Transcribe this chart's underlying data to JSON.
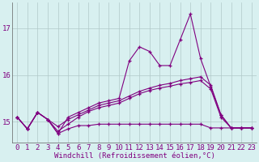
{
  "x": [
    0,
    1,
    2,
    3,
    4,
    5,
    6,
    7,
    8,
    9,
    10,
    11,
    12,
    13,
    14,
    15,
    16,
    17,
    18,
    19,
    20,
    21,
    22,
    23
  ],
  "line1": [
    15.1,
    14.85,
    15.2,
    15.05,
    14.75,
    15.1,
    15.2,
    15.3,
    15.4,
    15.45,
    15.5,
    16.3,
    16.6,
    16.5,
    16.2,
    16.2,
    16.75,
    17.3,
    16.35,
    15.75,
    15.15,
    14.87,
    14.87,
    14.87
  ],
  "line2": [
    15.1,
    14.85,
    15.2,
    15.05,
    14.9,
    15.05,
    15.15,
    15.25,
    15.35,
    15.4,
    15.45,
    15.55,
    15.65,
    15.72,
    15.78,
    15.82,
    15.88,
    15.92,
    15.96,
    15.78,
    15.15,
    14.87,
    14.87,
    14.87
  ],
  "line3": [
    15.1,
    14.85,
    15.2,
    15.05,
    14.8,
    14.95,
    15.1,
    15.22,
    15.3,
    15.35,
    15.4,
    15.5,
    15.6,
    15.67,
    15.72,
    15.76,
    15.81,
    15.84,
    15.88,
    15.7,
    15.1,
    14.87,
    14.87,
    14.87
  ],
  "line4": [
    15.1,
    14.85,
    15.2,
    15.05,
    14.75,
    14.85,
    14.92,
    14.92,
    14.95,
    14.95,
    14.95,
    14.95,
    14.95,
    14.95,
    14.95,
    14.95,
    14.95,
    14.95,
    14.95,
    14.87,
    14.87,
    14.87,
    14.87,
    14.87
  ],
  "line_color": "#800080",
  "bg_color": "#d8f0f0",
  "grid_color": "#b0c8c8",
  "ylabel_values": [
    15,
    16,
    17
  ],
  "ylim": [
    14.55,
    17.55
  ],
  "xlim": [
    -0.5,
    23.5
  ],
  "xlabel": "Windchill (Refroidissement éolien,°C)",
  "xlabel_fontsize": 6.5,
  "tick_fontsize": 6.5,
  "marker": "+",
  "marker_size": 3.5,
  "line_width": 0.8
}
